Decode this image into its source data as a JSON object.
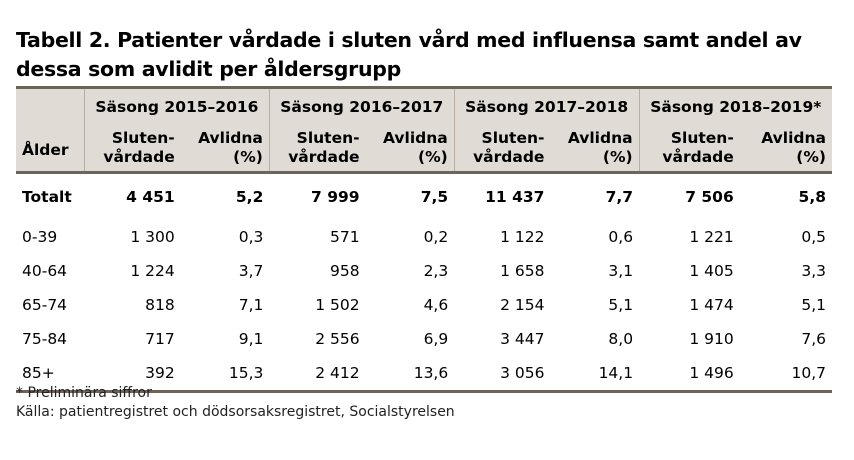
{
  "title_line1": "Tabell 2. Patienter vårdade i sluten vård med influensa samt andel av",
  "title_line2": "dessa som avlidit per åldersgrupp",
  "header": {
    "age": "Ålder",
    "seasons": [
      "Säsong 2015–2016",
      "Säsong 2016–2017",
      "Säsong 2017–2018",
      "Säsong 2018–2019*"
    ],
    "sub1_line1": "Sluten-",
    "sub1_line2": "vårdade",
    "sub2_line1": "Avlidna",
    "sub2_line2": "(%)"
  },
  "rows": [
    {
      "age": "Totalt",
      "v": [
        "4 451",
        "5,2",
        "7 999",
        "7,5",
        "11 437",
        "7,7",
        "7 506",
        "5,8"
      ]
    },
    {
      "age": "0-39",
      "v": [
        "1 300",
        "0,3",
        "571",
        "0,2",
        "1 122",
        "0,6",
        "1 221",
        "0,5"
      ]
    },
    {
      "age": "40-64",
      "v": [
        "1 224",
        "3,7",
        "958",
        "2,3",
        "1 658",
        "3,1",
        "1 405",
        "3,3"
      ]
    },
    {
      "age": "65-74",
      "v": [
        "818",
        "7,1",
        "1 502",
        "4,6",
        "2 154",
        "5,1",
        "1 474",
        "5,1"
      ]
    },
    {
      "age": "75-84",
      "v": [
        "717",
        "9,1",
        "2 556",
        "6,9",
        "3 447",
        "8,0",
        "1 910",
        "7,6"
      ]
    },
    {
      "age": "85+",
      "v": [
        "392",
        "15,3",
        "2 412",
        "13,6",
        "3 056",
        "14,1",
        "1 496",
        "10,7"
      ]
    }
  ],
  "footnote": "* Preliminära siffror",
  "source": "Källa: patientregistret och dödsorsaksregistret, Socialstyrelsen"
}
